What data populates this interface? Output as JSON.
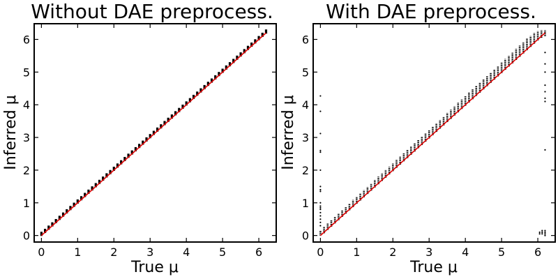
{
  "chart_data": [
    {
      "type": "scatter",
      "title": "Without DAE preprocess.",
      "xlabel": "True μ",
      "ylabel": "Inferred μ",
      "xlim": [
        -0.2,
        6.48
      ],
      "ylim": [
        -0.2,
        6.48
      ],
      "xticks": [
        0,
        1,
        2,
        3,
        4,
        5,
        6
      ],
      "yticks": [
        0,
        1,
        2,
        3,
        4,
        5,
        6
      ],
      "grid": false,
      "reference_line": {
        "x": [
          0,
          6.2
        ],
        "y": [
          0,
          6.2
        ],
        "color": "#e00000"
      },
      "point_color": "#000000",
      "series": [
        {
          "x": [
            0.0,
            0.1,
            0.2,
            0.3,
            0.4,
            0.5,
            0.6,
            0.7,
            0.8,
            0.9,
            1.0,
            1.1,
            1.2,
            1.3,
            1.4,
            1.5,
            1.6,
            1.7,
            1.8,
            1.9,
            2.0,
            2.1,
            2.2,
            2.3,
            2.4,
            2.5,
            2.6,
            2.7,
            2.8,
            2.9,
            3.0,
            3.1,
            3.2,
            3.3,
            3.4,
            3.5,
            3.6,
            3.7,
            3.8,
            3.9,
            4.0,
            4.1,
            4.2,
            4.3,
            4.4,
            4.5,
            4.6,
            4.7,
            4.8,
            4.9,
            5.0,
            5.1,
            5.2,
            5.3,
            5.4,
            5.5,
            5.6,
            5.7,
            5.8,
            5.9,
            6.0,
            6.1,
            6.2
          ],
          "y": [
            0.05,
            0.14,
            0.24,
            0.34,
            0.44,
            0.54,
            0.64,
            0.74,
            0.84,
            0.94,
            1.04,
            1.14,
            1.24,
            1.34,
            1.44,
            1.54,
            1.64,
            1.74,
            1.84,
            1.94,
            2.04,
            2.14,
            2.24,
            2.34,
            2.44,
            2.54,
            2.64,
            2.74,
            2.84,
            2.94,
            3.04,
            3.14,
            3.24,
            3.34,
            3.44,
            3.54,
            3.64,
            3.74,
            3.84,
            3.94,
            4.04,
            4.14,
            4.24,
            4.34,
            4.44,
            4.54,
            4.64,
            4.74,
            4.84,
            4.94,
            5.04,
            5.14,
            5.24,
            5.34,
            5.44,
            5.54,
            5.64,
            5.74,
            5.84,
            5.94,
            6.04,
            6.14,
            6.24
          ]
        }
      ]
    },
    {
      "type": "scatter",
      "title": "With DAE preprocess.",
      "xlabel": "True μ",
      "ylabel": "Inferred μ",
      "xlim": [
        -0.2,
        6.48
      ],
      "ylim": [
        -0.2,
        6.48
      ],
      "xticks": [
        0,
        1,
        2,
        3,
        4,
        5,
        6
      ],
      "yticks": [
        0,
        1,
        2,
        3,
        4,
        5,
        6
      ],
      "grid": false,
      "reference_line": {
        "x": [
          0,
          6.2
        ],
        "y": [
          0,
          6.2
        ],
        "color": "#e00000"
      },
      "point_color": "#000000",
      "series": [
        {
          "x": [
            0.0,
            0.1,
            0.2,
            0.3,
            0.4,
            0.5,
            0.6,
            0.7,
            0.8,
            0.9,
            1.0,
            1.1,
            1.2,
            1.3,
            1.4,
            1.5,
            1.6,
            1.7,
            1.8,
            1.9,
            2.0,
            2.1,
            2.2,
            2.3,
            2.4,
            2.5,
            2.6,
            2.7,
            2.8,
            2.9,
            3.0,
            3.1,
            3.2,
            3.3,
            3.4,
            3.5,
            3.6,
            3.7,
            3.8,
            3.9,
            4.0,
            4.1,
            4.2,
            4.3,
            4.4,
            4.5,
            4.6,
            4.7,
            4.8,
            4.9,
            5.0,
            5.1,
            5.2,
            5.3,
            5.4,
            5.5,
            5.6,
            5.7,
            5.8,
            5.9,
            6.0,
            6.1,
            6.2
          ],
          "y_low": [
            0.0,
            0.07,
            0.17,
            0.27,
            0.37,
            0.47,
            0.57,
            0.67,
            0.77,
            0.87,
            0.97,
            1.07,
            1.17,
            1.27,
            1.37,
            1.47,
            1.57,
            1.67,
            1.77,
            1.87,
            1.97,
            2.07,
            2.17,
            2.27,
            2.37,
            2.47,
            2.57,
            2.67,
            2.77,
            2.87,
            2.97,
            3.07,
            3.17,
            3.27,
            3.37,
            3.47,
            3.57,
            3.67,
            3.77,
            3.87,
            3.97,
            4.07,
            4.17,
            4.27,
            4.37,
            4.47,
            4.57,
            4.67,
            4.77,
            4.87,
            4.97,
            5.07,
            5.17,
            5.27,
            5.37,
            5.47,
            5.57,
            5.67,
            5.77,
            5.87,
            5.97,
            6.05,
            6.1
          ],
          "y_high": [
            0.15,
            0.26,
            0.38,
            0.48,
            0.58,
            0.68,
            0.78,
            0.88,
            0.98,
            1.09,
            1.19,
            1.29,
            1.39,
            1.49,
            1.59,
            1.7,
            1.8,
            1.9,
            2.0,
            2.1,
            2.2,
            2.31,
            2.41,
            2.51,
            2.62,
            2.72,
            2.82,
            2.93,
            3.03,
            3.13,
            3.23,
            3.34,
            3.44,
            3.54,
            3.64,
            3.75,
            3.85,
            3.95,
            4.06,
            4.16,
            4.26,
            4.37,
            4.47,
            4.57,
            4.68,
            4.78,
            4.88,
            4.99,
            5.09,
            5.19,
            5.3,
            5.4,
            5.5,
            5.6,
            5.71,
            5.81,
            5.91,
            6.02,
            6.1,
            6.2,
            6.25,
            6.28,
            6.28
          ]
        },
        {
          "name": "",
          "x": [
            0.0,
            0.0,
            0.0,
            0.0,
            0.0,
            0.0,
            0.0,
            0.0,
            0.0,
            0.0,
            0.0,
            0.0,
            0.0,
            0.0,
            0.0,
            0.0,
            0.0,
            0.0,
            6.05,
            6.05,
            6.12,
            6.12,
            6.12,
            6.2,
            6.2,
            6.2,
            6.2,
            6.2,
            6.2,
            6.2,
            6.2,
            6.2,
            6.2,
            6.2,
            6.2
          ],
          "y": [
            4.27,
            3.8,
            3.12,
            2.6,
            2.55,
            2.0,
            1.5,
            1.4,
            1.35,
            1.0,
            0.9,
            0.85,
            0.8,
            0.7,
            0.6,
            0.5,
            0.4,
            0.3,
            0.05,
            0.1,
            0.05,
            0.1,
            0.15,
            0.0,
            0.05,
            0.1,
            0.15,
            2.62,
            4.1,
            4.2,
            4.4,
            4.6,
            5.0,
            5.25,
            5.6
          ]
        }
      ]
    }
  ]
}
